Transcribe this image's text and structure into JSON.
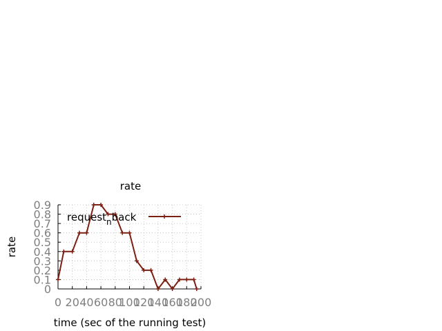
{
  "chart_data": {
    "type": "line",
    "title": "rate",
    "xlabel": "time (sec of the running test)",
    "ylabel": "rate",
    "xlim": [
      0,
      200
    ],
    "ylim": [
      0,
      0.9
    ],
    "xticks": [
      "0",
      "20",
      "40",
      "60",
      "80",
      "100",
      "120",
      "140",
      "160",
      "180",
      "200"
    ],
    "yticks": [
      "0",
      "0.1",
      "0.2",
      "0.3",
      "0.4",
      "0.5",
      "0.6",
      "0.7",
      "0.8",
      "0.9"
    ],
    "grid": true,
    "legend_position": "top-right",
    "series": [
      {
        "name": "request_nback",
        "name_base": "request",
        "name_sub": "n",
        "name_rest": "back",
        "color": "#7b1f12",
        "marker": "plus",
        "x": [
          0,
          8,
          20,
          30,
          40,
          50,
          60,
          70,
          80,
          90,
          100,
          110,
          120,
          130,
          140,
          150,
          160,
          170,
          180,
          190,
          194
        ],
        "y": [
          0.1,
          0.4,
          0.4,
          0.6,
          0.6,
          0.9,
          0.9,
          0.8,
          0.8,
          0.6,
          0.6,
          0.3,
          0.2,
          0.2,
          0.0,
          0.1,
          0.0,
          0.1,
          0.1,
          0.1,
          0.0
        ]
      }
    ]
  }
}
